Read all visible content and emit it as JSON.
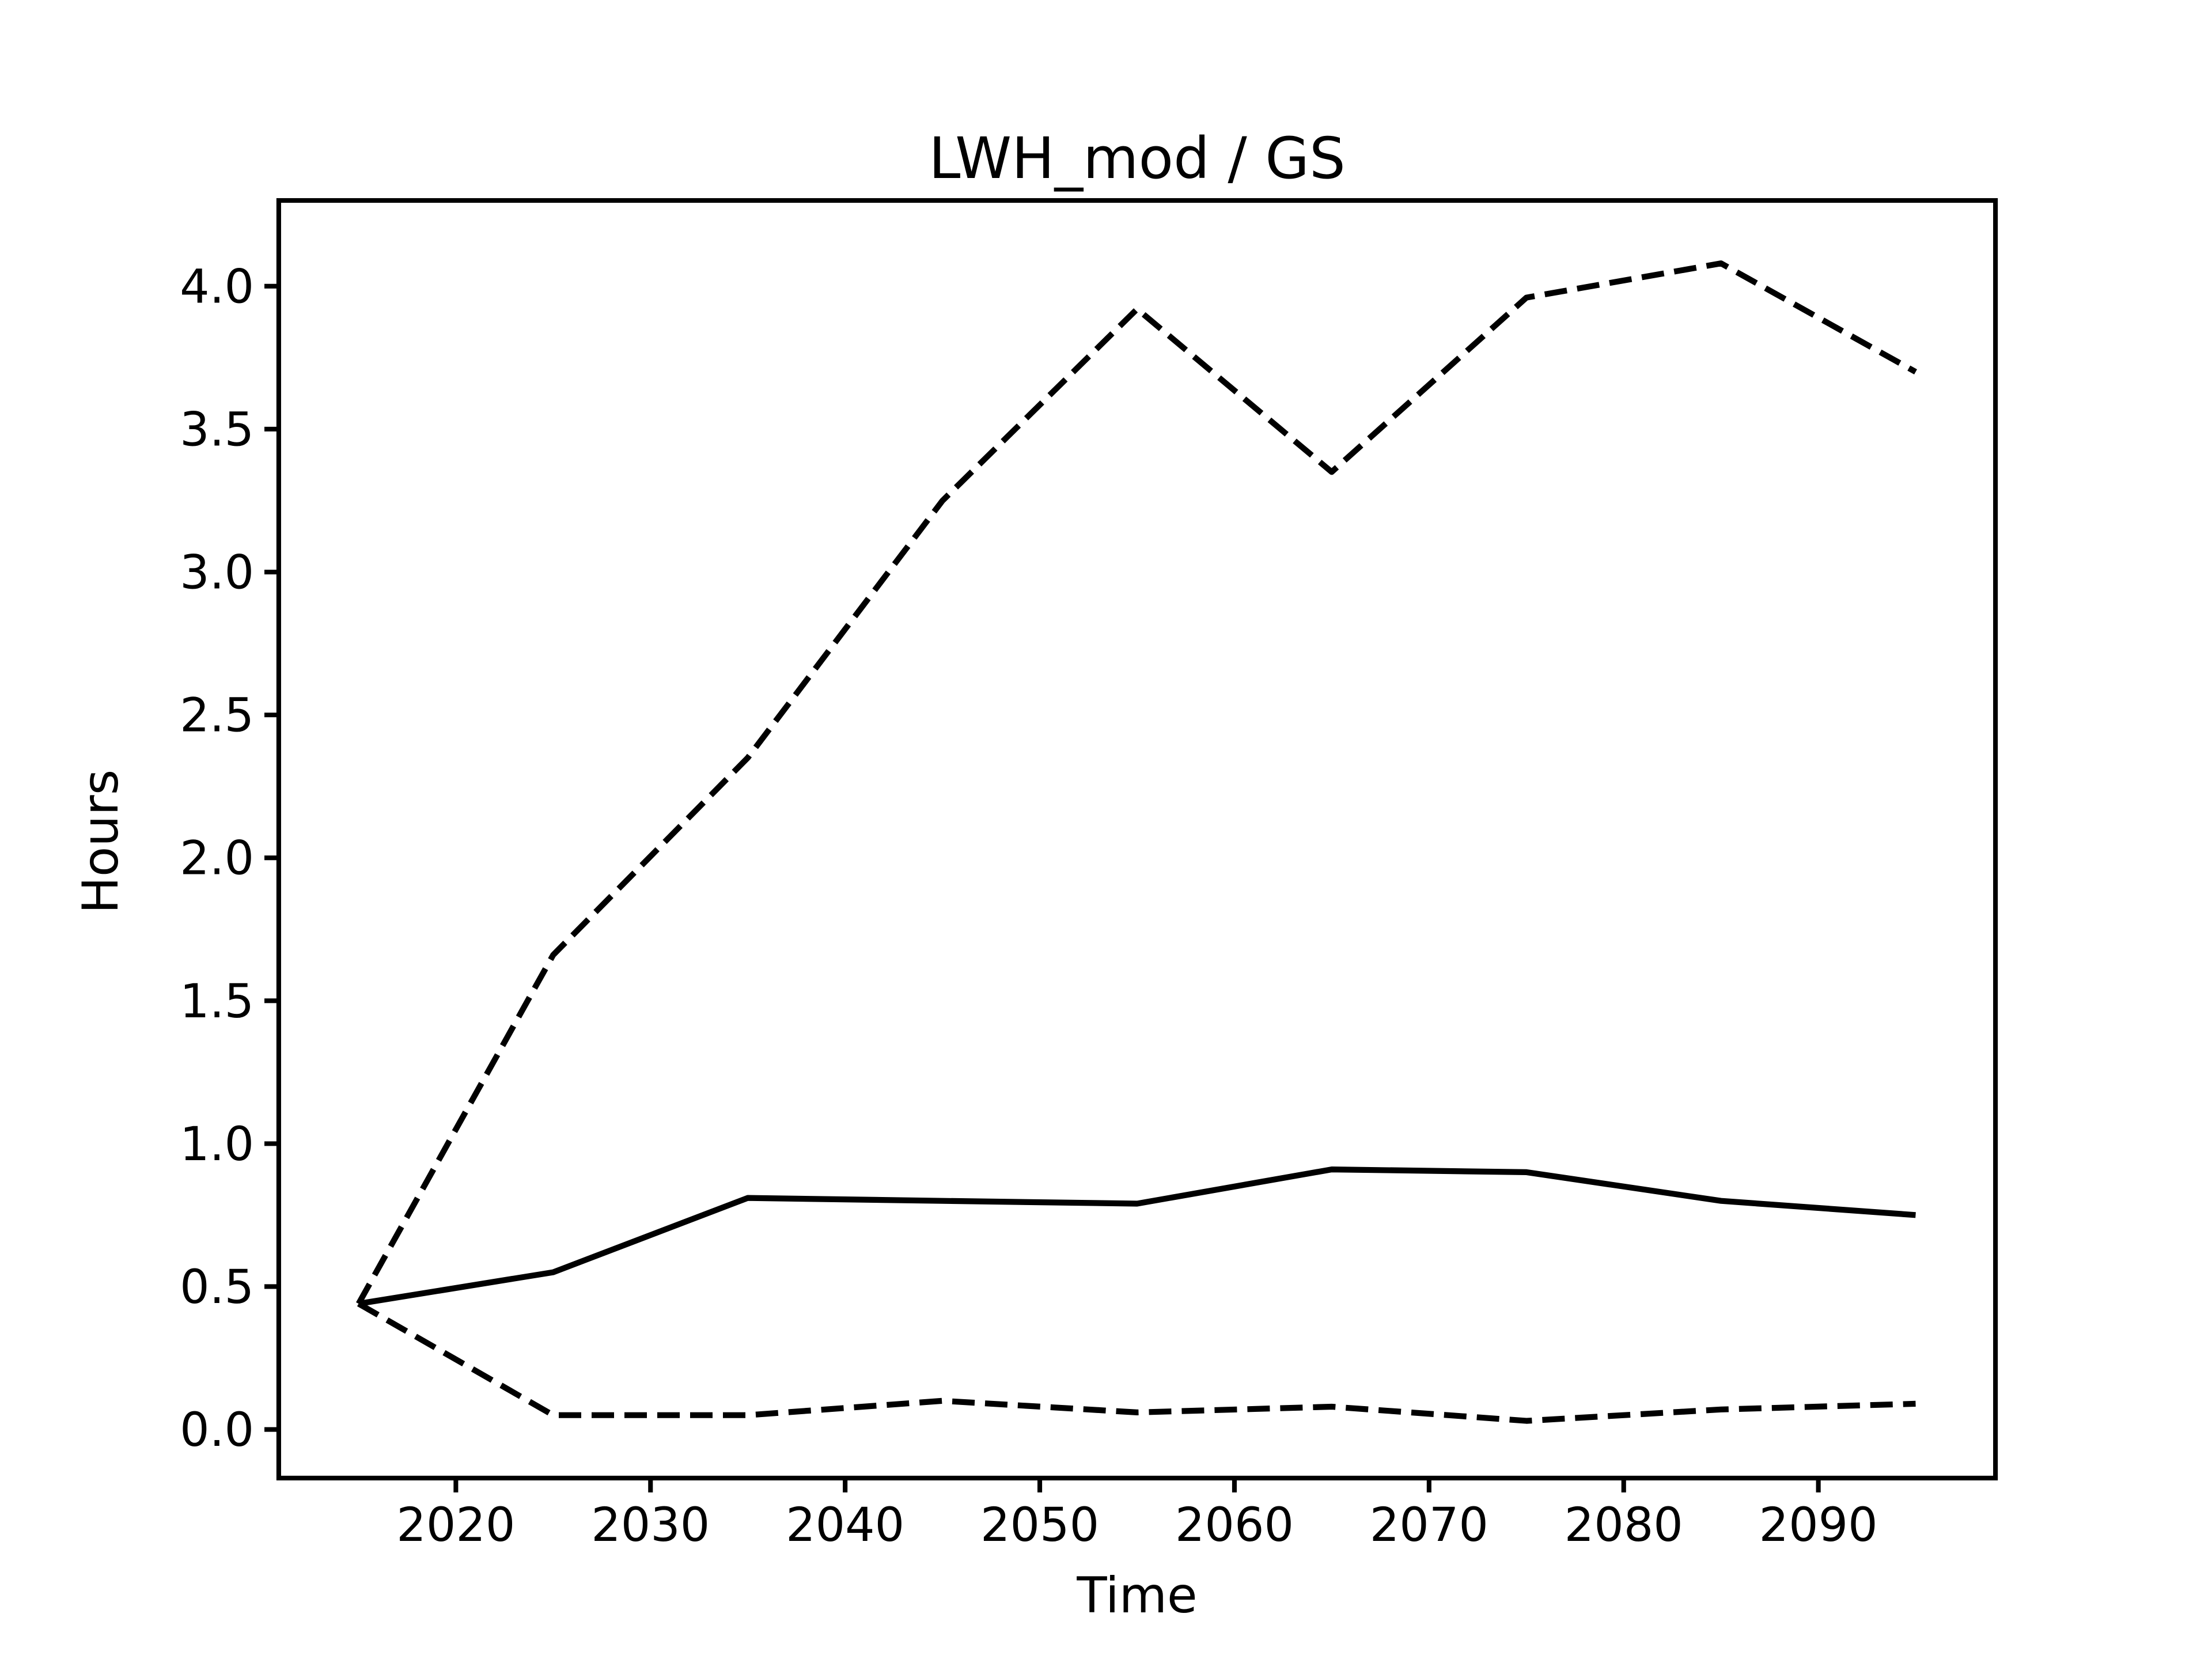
{
  "figure": {
    "title": "LWH_mod / GS",
    "xlabel": "Time",
    "ylabel": "Hours"
  },
  "chart_data": {
    "type": "line",
    "title": "LWH_mod / GS",
    "xlabel": "Time",
    "ylabel": "Hours",
    "background_color": "#ffffff",
    "line_color": "#000000",
    "grid": false,
    "legend": "none",
    "xlim": [
      2010.9,
      2099.1
    ],
    "ylim": [
      -0.17,
      4.3
    ],
    "xticks": {
      "values": [
        2020,
        2030,
        2040,
        2050,
        2060,
        2070,
        2080,
        2090
      ],
      "labels": [
        "2020",
        "2030",
        "2040",
        "2050",
        "2060",
        "2070",
        "2080",
        "2090"
      ]
    },
    "yticks": {
      "values": [
        0.0,
        0.5,
        1.0,
        1.5,
        2.0,
        2.5,
        3.0,
        3.5,
        4.0
      ],
      "labels": [
        "0.0",
        "0.5",
        "1.0",
        "1.5",
        "2.0",
        "2.5",
        "3.0",
        "3.5",
        "4.0"
      ]
    },
    "x": [
      2015,
      2025,
      2035,
      2045,
      2055,
      2065,
      2075,
      2085,
      2095
    ],
    "series": [
      {
        "name": "upper-dashed",
        "linestyle": "dashed",
        "color": "#000000",
        "linewidth": 3.4,
        "values": [
          0.44,
          1.66,
          2.35,
          3.25,
          3.92,
          3.35,
          3.96,
          4.08,
          3.7
        ]
      },
      {
        "name": "middle-solid",
        "linestyle": "solid",
        "color": "#000000",
        "linewidth": 3.4,
        "values": [
          0.44,
          0.55,
          0.81,
          0.8,
          0.79,
          0.91,
          0.9,
          0.8,
          0.75
        ]
      },
      {
        "name": "lower-dashed",
        "linestyle": "dashed",
        "color": "#000000",
        "linewidth": 3.4,
        "values": [
          0.44,
          0.05,
          0.05,
          0.1,
          0.06,
          0.08,
          0.03,
          0.07,
          0.09
        ]
      }
    ]
  }
}
